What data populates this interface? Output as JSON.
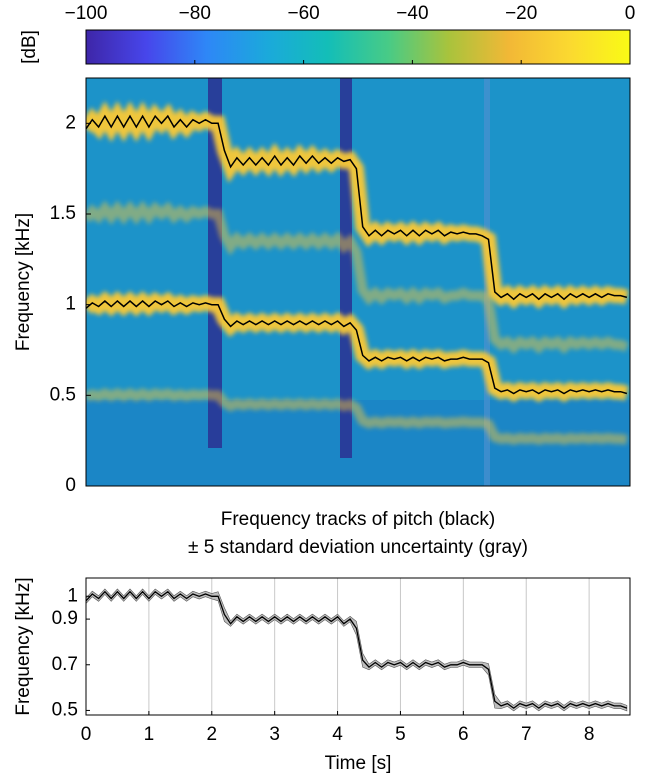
{
  "chart_data": [
    {
      "type": "colorbar",
      "label": "[dB]",
      "xlim": [
        -100,
        0
      ],
      "xticks": [
        {
          "value": -100,
          "label": "−100"
        },
        {
          "value": -80,
          "label": "−80"
        },
        {
          "value": -60,
          "label": "−60"
        },
        {
          "value": -40,
          "label": "−40"
        },
        {
          "value": -20,
          "label": "−20"
        },
        0
      ],
      "colors": [
        "#3e26a8",
        "#4746eb",
        "#2e87f7",
        "#1ba9db",
        "#13beb8",
        "#48cb86",
        "#a9c33c",
        "#f2b836",
        "#fbd930",
        "#f9fb15"
      ]
    },
    {
      "type": "spectrogram",
      "ylabel": "Frequency [kHz]",
      "xlim": [
        0,
        8.65
      ],
      "ylim": [
        0,
        2.25
      ],
      "yticks": [
        0,
        0.5,
        1,
        1.5,
        2
      ],
      "band_color": "#fbc934",
      "background": "#1c93c9",
      "captions": [
        "Frequency tracks of pitch (black)",
        "± 5 standard deviation uncertainty (gray)"
      ],
      "x": [
        0,
        0.1,
        0.2,
        0.3,
        0.4,
        0.5,
        0.6,
        0.7,
        0.8,
        0.9,
        1,
        1.1,
        1.2,
        1.3,
        1.4,
        1.5,
        1.6,
        1.7,
        1.8,
        1.9,
        2,
        2.1,
        2.2,
        2.3,
        2.4,
        2.5,
        2.6,
        2.7,
        2.8,
        2.9,
        3,
        3.1,
        3.2,
        3.3,
        3.4,
        3.5,
        3.6,
        3.7,
        3.8,
        3.9,
        4,
        4.1,
        4.2,
        4.3,
        4.4,
        4.5,
        4.6,
        4.7,
        4.8,
        4.9,
        5,
        5.1,
        5.2,
        5.3,
        5.4,
        5.5,
        5.6,
        5.7,
        5.8,
        5.9,
        6,
        6.1,
        6.2,
        6.3,
        6.4,
        6.5,
        6.6,
        6.7,
        6.8,
        6.9,
        7,
        7.1,
        7.2,
        7.3,
        7.4,
        7.5,
        7.6,
        7.7,
        7.8,
        7.9,
        8,
        8.1,
        8.2,
        8.3,
        8.4,
        8.5,
        8.6
      ],
      "series": [
        {
          "color": "#000000",
          "values": [
            1.97,
            2.02,
            1.98,
            2.04,
            1.98,
            2.04,
            1.98,
            2.04,
            1.98,
            2.04,
            1.98,
            2.04,
            2.0,
            2.04,
            1.98,
            2.02,
            1.98,
            2.02,
            2.0,
            2.02,
            2.0,
            2.0,
            1.85,
            1.76,
            1.81,
            1.77,
            1.81,
            1.77,
            1.81,
            1.77,
            1.82,
            1.77,
            1.81,
            1.77,
            1.82,
            1.78,
            1.82,
            1.78,
            1.81,
            1.78,
            1.81,
            1.79,
            1.8,
            1.75,
            1.43,
            1.38,
            1.41,
            1.38,
            1.41,
            1.39,
            1.41,
            1.38,
            1.41,
            1.38,
            1.41,
            1.39,
            1.41,
            1.38,
            1.4,
            1.39,
            1.4,
            1.39,
            1.39,
            1.38,
            1.36,
            1.07,
            1.04,
            1.06,
            1.03,
            1.06,
            1.04,
            1.06,
            1.03,
            1.06,
            1.04,
            1.06,
            1.03,
            1.06,
            1.04,
            1.06,
            1.04,
            1.06,
            1.04,
            1.06,
            1.05,
            1.05,
            1.04
          ]
        },
        {
          "color": "#000000",
          "values": [
            0.98,
            1.01,
            0.99,
            1.02,
            0.99,
            1.02,
            0.99,
            1.02,
            0.99,
            1.02,
            0.99,
            1.02,
            1.0,
            1.02,
            0.99,
            1.01,
            0.99,
            1.01,
            1.0,
            1.01,
            1.0,
            1.0,
            0.92,
            0.88,
            0.91,
            0.89,
            0.91,
            0.89,
            0.91,
            0.89,
            0.91,
            0.89,
            0.91,
            0.89,
            0.91,
            0.89,
            0.91,
            0.89,
            0.91,
            0.89,
            0.91,
            0.88,
            0.9,
            0.86,
            0.72,
            0.69,
            0.71,
            0.69,
            0.71,
            0.7,
            0.71,
            0.69,
            0.71,
            0.69,
            0.71,
            0.7,
            0.71,
            0.69,
            0.7,
            0.7,
            0.71,
            0.7,
            0.7,
            0.7,
            0.68,
            0.54,
            0.52,
            0.53,
            0.51,
            0.53,
            0.52,
            0.53,
            0.51,
            0.53,
            0.52,
            0.53,
            0.51,
            0.53,
            0.52,
            0.53,
            0.52,
            0.53,
            0.52,
            0.53,
            0.52,
            0.52,
            0.51
          ]
        }
      ]
    },
    {
      "type": "line",
      "xlabel": "Time [s]",
      "ylabel": "Frequency [kHz]",
      "xlim": [
        0,
        8.65
      ],
      "ylim": [
        0.48,
        1.08
      ],
      "xticks": [
        0,
        1,
        2,
        3,
        4,
        5,
        6,
        7,
        8
      ],
      "yticks": [
        0.5,
        0.7,
        0.9,
        1
      ],
      "grid": "x",
      "x": [
        0,
        0.1,
        0.2,
        0.3,
        0.4,
        0.5,
        0.6,
        0.7,
        0.8,
        0.9,
        1,
        1.1,
        1.2,
        1.3,
        1.4,
        1.5,
        1.6,
        1.7,
        1.8,
        1.9,
        2,
        2.1,
        2.2,
        2.3,
        2.4,
        2.5,
        2.6,
        2.7,
        2.8,
        2.9,
        3,
        3.1,
        3.2,
        3.3,
        3.4,
        3.5,
        3.6,
        3.7,
        3.8,
        3.9,
        4,
        4.1,
        4.2,
        4.3,
        4.4,
        4.5,
        4.6,
        4.7,
        4.8,
        4.9,
        5,
        5.1,
        5.2,
        5.3,
        5.4,
        5.5,
        5.6,
        5.7,
        5.8,
        5.9,
        6,
        6.1,
        6.2,
        6.3,
        6.4,
        6.5,
        6.6,
        6.7,
        6.8,
        6.9,
        7,
        7.1,
        7.2,
        7.3,
        7.4,
        7.5,
        7.6,
        7.7,
        7.8,
        7.9,
        8,
        8.1,
        8.2,
        8.3,
        8.4,
        8.5,
        8.6
      ],
      "series": [
        {
          "color": "#000000",
          "error_color": "#a8a8a8",
          "values": [
            0.98,
            1.01,
            0.99,
            1.02,
            0.99,
            1.02,
            0.99,
            1.02,
            0.99,
            1.02,
            0.99,
            1.02,
            1.0,
            1.02,
            0.99,
            1.01,
            0.99,
            1.01,
            1.0,
            1.01,
            1.0,
            1.0,
            0.92,
            0.88,
            0.91,
            0.89,
            0.91,
            0.89,
            0.91,
            0.89,
            0.91,
            0.89,
            0.91,
            0.89,
            0.91,
            0.89,
            0.91,
            0.89,
            0.91,
            0.89,
            0.91,
            0.88,
            0.9,
            0.86,
            0.72,
            0.69,
            0.71,
            0.69,
            0.71,
            0.7,
            0.71,
            0.69,
            0.71,
            0.69,
            0.71,
            0.7,
            0.71,
            0.69,
            0.7,
            0.7,
            0.71,
            0.7,
            0.7,
            0.7,
            0.68,
            0.54,
            0.52,
            0.53,
            0.51,
            0.53,
            0.52,
            0.53,
            0.51,
            0.53,
            0.52,
            0.53,
            0.51,
            0.53,
            0.52,
            0.53,
            0.52,
            0.53,
            0.52,
            0.53,
            0.52,
            0.52,
            0.51
          ],
          "error": [
            0.012,
            0.012,
            0.012,
            0.012,
            0.012,
            0.012,
            0.012,
            0.012,
            0.012,
            0.012,
            0.012,
            0.012,
            0.012,
            0.012,
            0.012,
            0.012,
            0.012,
            0.012,
            0.012,
            0.012,
            0.012,
            0.02,
            0.03,
            0.012,
            0.012,
            0.012,
            0.012,
            0.012,
            0.012,
            0.012,
            0.012,
            0.012,
            0.012,
            0.012,
            0.012,
            0.012,
            0.012,
            0.012,
            0.012,
            0.012,
            0.012,
            0.012,
            0.012,
            0.03,
            0.03,
            0.012,
            0.012,
            0.012,
            0.012,
            0.012,
            0.012,
            0.012,
            0.012,
            0.012,
            0.012,
            0.012,
            0.012,
            0.012,
            0.012,
            0.012,
            0.012,
            0.012,
            0.012,
            0.012,
            0.025,
            0.03,
            0.012,
            0.012,
            0.012,
            0.012,
            0.012,
            0.012,
            0.012,
            0.012,
            0.012,
            0.012,
            0.012,
            0.012,
            0.012,
            0.012,
            0.012,
            0.012,
            0.012,
            0.012,
            0.012,
            0.012,
            0.012
          ]
        }
      ]
    }
  ]
}
